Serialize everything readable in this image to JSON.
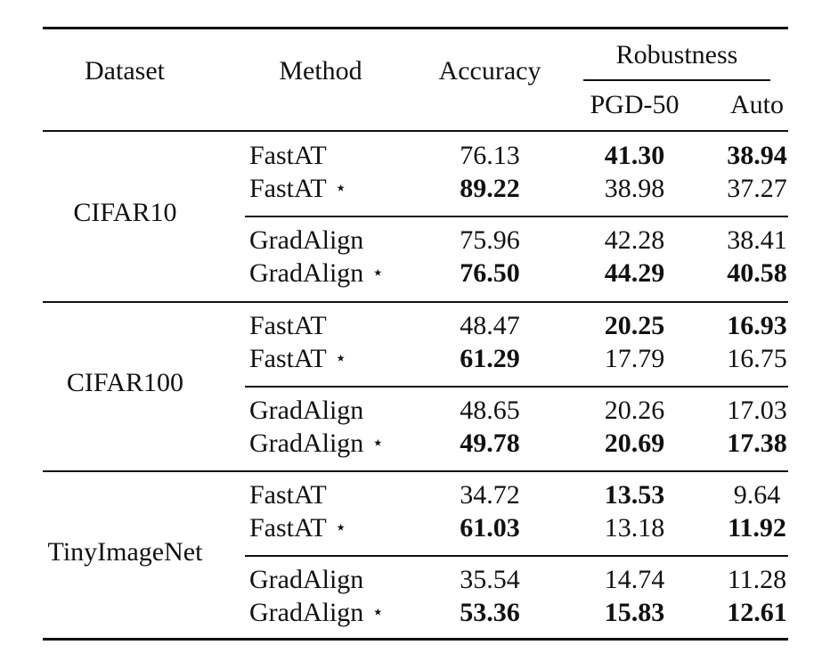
{
  "header": {
    "dataset": "Dataset",
    "method": "Method",
    "accuracy": "Accuracy",
    "robustness": "Robustness",
    "pgd50": "PGD-50",
    "auto": "Auto"
  },
  "star_symbol": "⋆",
  "groups": [
    {
      "dataset": "CIFAR10",
      "blocks": [
        {
          "rows": [
            {
              "method": "FastAT",
              "starred": false,
              "accuracy": "76.13",
              "pgd50": "41.30",
              "auto": "38.94",
              "bold": {
                "accuracy": false,
                "pgd50": true,
                "auto": true
              }
            },
            {
              "method": "FastAT",
              "starred": true,
              "accuracy": "89.22",
              "pgd50": "38.98",
              "auto": "37.27",
              "bold": {
                "accuracy": true,
                "pgd50": false,
                "auto": false
              }
            }
          ]
        },
        {
          "rows": [
            {
              "method": "GradAlign",
              "starred": false,
              "accuracy": "75.96",
              "pgd50": "42.28",
              "auto": "38.41",
              "bold": {
                "accuracy": false,
                "pgd50": false,
                "auto": false
              }
            },
            {
              "method": "GradAlign",
              "starred": true,
              "accuracy": "76.50",
              "pgd50": "44.29",
              "auto": "40.58",
              "bold": {
                "accuracy": true,
                "pgd50": true,
                "auto": true
              }
            }
          ]
        }
      ]
    },
    {
      "dataset": "CIFAR100",
      "blocks": [
        {
          "rows": [
            {
              "method": "FastAT",
              "starred": false,
              "accuracy": "48.47",
              "pgd50": "20.25",
              "auto": "16.93",
              "bold": {
                "accuracy": false,
                "pgd50": true,
                "auto": true
              }
            },
            {
              "method": "FastAT",
              "starred": true,
              "accuracy": "61.29",
              "pgd50": "17.79",
              "auto": "16.75",
              "bold": {
                "accuracy": true,
                "pgd50": false,
                "auto": false
              }
            }
          ]
        },
        {
          "rows": [
            {
              "method": "GradAlign",
              "starred": false,
              "accuracy": "48.65",
              "pgd50": "20.26",
              "auto": "17.03",
              "bold": {
                "accuracy": false,
                "pgd50": false,
                "auto": false
              }
            },
            {
              "method": "GradAlign",
              "starred": true,
              "accuracy": "49.78",
              "pgd50": "20.69",
              "auto": "17.38",
              "bold": {
                "accuracy": true,
                "pgd50": true,
                "auto": true
              }
            }
          ]
        }
      ]
    },
    {
      "dataset": "TinyImageNet",
      "blocks": [
        {
          "rows": [
            {
              "method": "FastAT",
              "starred": false,
              "accuracy": "34.72",
              "pgd50": "13.53",
              "auto": "9.64",
              "bold": {
                "accuracy": false,
                "pgd50": true,
                "auto": false
              }
            },
            {
              "method": "FastAT",
              "starred": true,
              "accuracy": "61.03",
              "pgd50": "13.18",
              "auto": "11.92",
              "bold": {
                "accuracy": true,
                "pgd50": false,
                "auto": true
              }
            }
          ]
        },
        {
          "rows": [
            {
              "method": "GradAlign",
              "starred": false,
              "accuracy": "35.54",
              "pgd50": "14.74",
              "auto": "11.28",
              "bold": {
                "accuracy": false,
                "pgd50": false,
                "auto": false
              }
            },
            {
              "method": "GradAlign",
              "starred": true,
              "accuracy": "53.36",
              "pgd50": "15.83",
              "auto": "12.61",
              "bold": {
                "accuracy": true,
                "pgd50": true,
                "auto": true
              }
            }
          ]
        }
      ]
    }
  ]
}
